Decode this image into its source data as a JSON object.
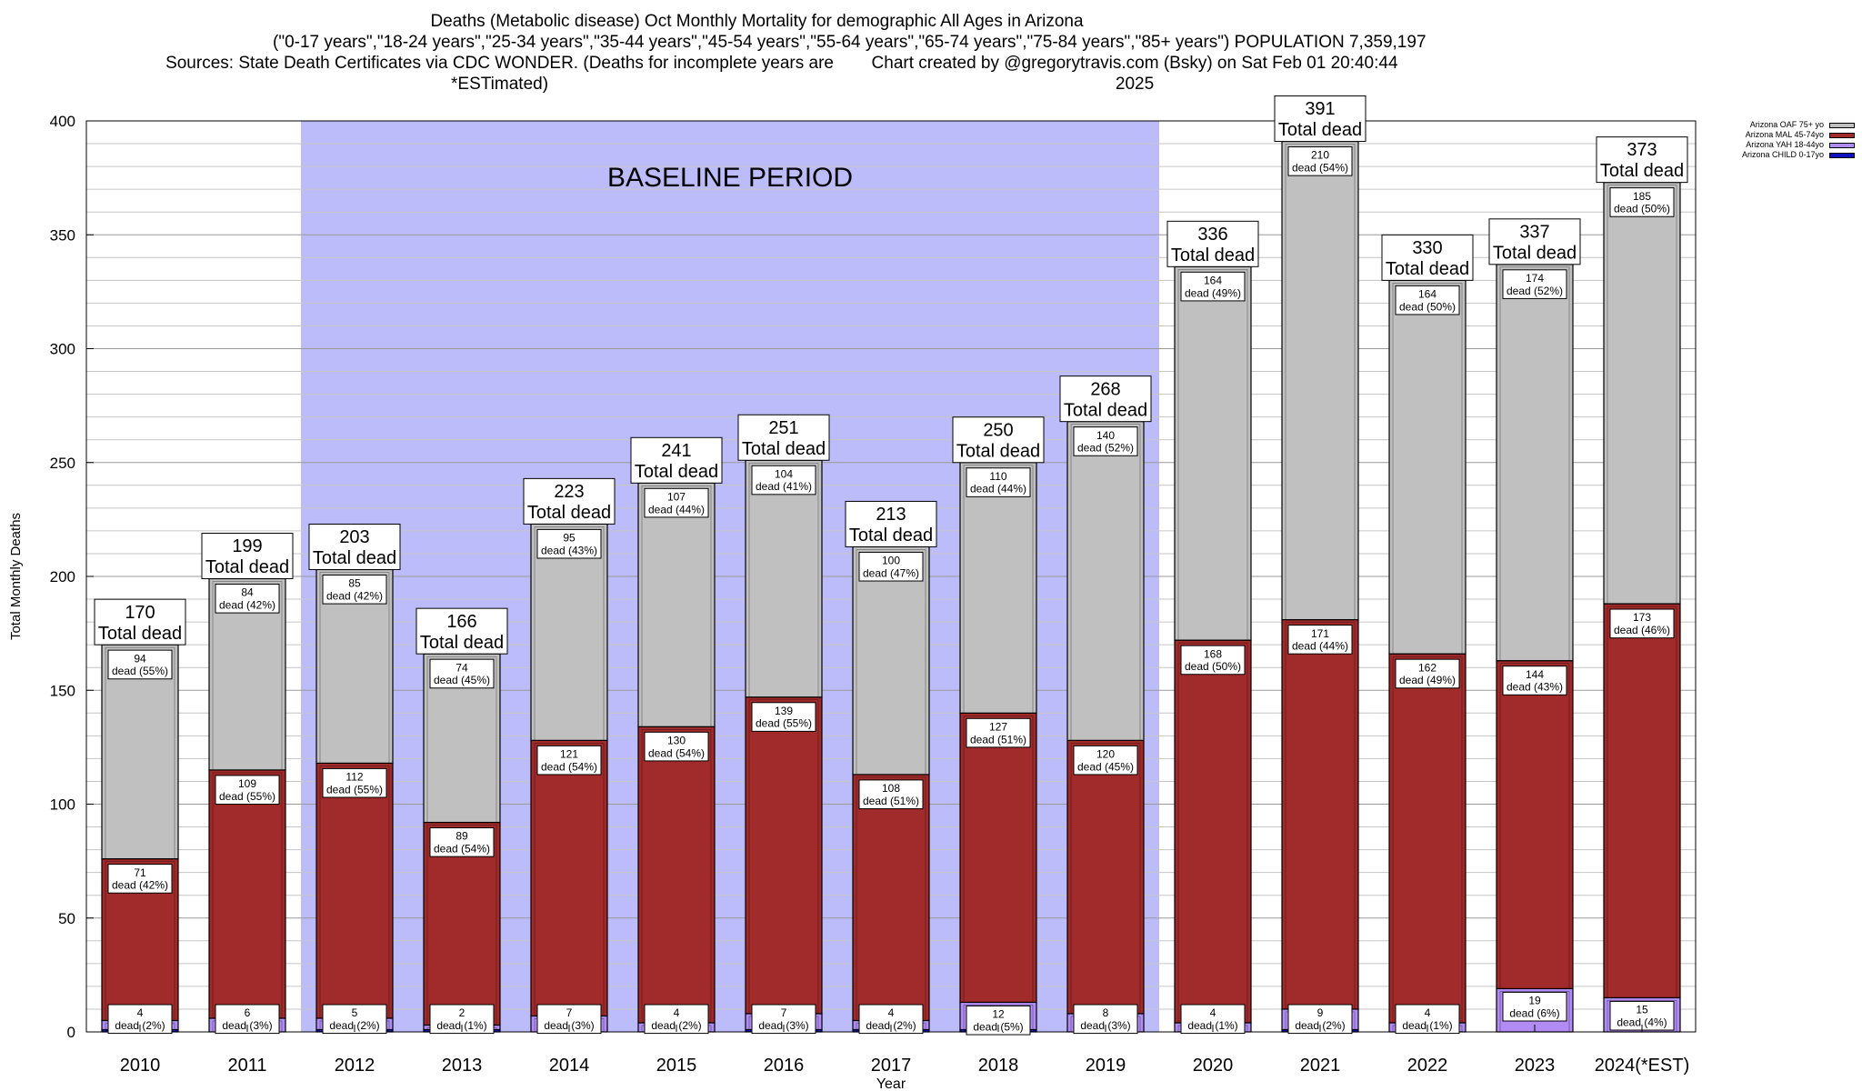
{
  "chart_data": {
    "type": "bar",
    "stacked": true,
    "title": "Deaths (Metabolic disease) Oct Monthly Mortality for demographic All Ages in Arizona",
    "subtitle": "(\"0-17 years\",\"18-24 years\",\"25-34 years\",\"35-44 years\",\"45-54 years\",\"55-64 years\",\"65-74 years\",\"75-84 years\",\"85+ years\") POPULATION 7,359,197",
    "sources": "Sources: State Death Certificates via CDC WONDER. (Deaths for incomplete years are *ESTimated)",
    "credit": "Chart created by @gregorytravis.com (Bsky) on Sat Feb 01 20:40:44 2025",
    "xlabel": "Year",
    "ylabel": "Total Monthly Deaths",
    "ylim": [
      0,
      400
    ],
    "yticks": [
      0,
      50,
      100,
      150,
      200,
      250,
      300,
      350,
      400
    ],
    "grid": true,
    "legend_position": "top-right",
    "baseline_label": "BASELINE PERIOD",
    "baseline_range": [
      "2012",
      "2019"
    ],
    "total_label": "Total dead",
    "dead_word": "dead",
    "categories": [
      "2010",
      "2011",
      "2012",
      "2013",
      "2014",
      "2015",
      "2016",
      "2017",
      "2018",
      "2019",
      "2020",
      "2021",
      "2022",
      "2023",
      "2024(*EST)"
    ],
    "totals": [
      170,
      199,
      203,
      166,
      223,
      241,
      251,
      213,
      250,
      268,
      336,
      391,
      330,
      337,
      373
    ],
    "series": [
      {
        "name": "Arizona CHILD 0-17yo",
        "color": "#1010c0",
        "values": [
          1,
          0,
          1,
          1,
          0,
          0,
          1,
          1,
          1,
          0,
          0,
          1,
          0,
          0,
          0
        ],
        "labels": [
          null,
          null,
          null,
          null,
          null,
          null,
          null,
          null,
          null,
          null,
          null,
          null,
          null,
          null,
          null
        ]
      },
      {
        "name": "Arizona YAH 18-44yo",
        "color": "#b28cf5",
        "values": [
          4,
          6,
          5,
          2,
          7,
          4,
          7,
          4,
          12,
          8,
          4,
          9,
          4,
          19,
          15
        ],
        "labels": [
          "(2%)",
          "(3%)",
          "(2%)",
          "(1%)",
          "(3%)",
          "(2%)",
          "(3%)",
          "(2%)",
          "(5%)",
          "(3%)",
          "(1%)",
          "(2%)",
          "(1%)",
          "(6%)",
          "(4%)"
        ]
      },
      {
        "name": "Arizona MAL 45-74yo",
        "color": "#a12a2a",
        "values": [
          71,
          109,
          112,
          89,
          121,
          130,
          139,
          108,
          127,
          120,
          168,
          171,
          162,
          144,
          173
        ],
        "labels": [
          "(42%)",
          "(55%)",
          "(55%)",
          "(54%)",
          "(54%)",
          "(54%)",
          "(55%)",
          "(51%)",
          "(51%)",
          "(45%)",
          "(50%)",
          "(44%)",
          "(49%)",
          "(43%)",
          "(46%)"
        ]
      },
      {
        "name": "Arizona OAF 75+ yo",
        "color": "#c0c0c0",
        "values": [
          94,
          84,
          85,
          74,
          95,
          107,
          104,
          100,
          110,
          140,
          164,
          210,
          164,
          174,
          185
        ],
        "labels": [
          "(55%)",
          "(42%)",
          "(42%)",
          "(45%)",
          "(43%)",
          "(44%)",
          "(41%)",
          "(47%)",
          "(44%)",
          "(52%)",
          "(49%)",
          "(54%)",
          "(50%)",
          "(52%)",
          "(50%)"
        ]
      }
    ],
    "legend_order": [
      "Arizona OAF 75+ yo",
      "Arizona MAL 45-74yo",
      "Arizona YAH 18-44yo",
      "Arizona CHILD 0-17yo"
    ]
  }
}
